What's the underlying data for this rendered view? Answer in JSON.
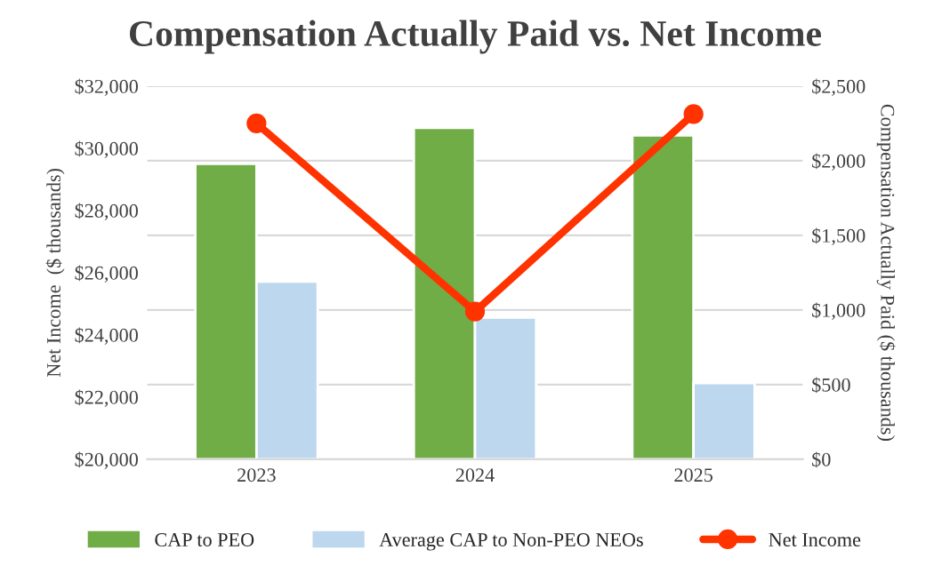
{
  "chart_data": {
    "type": "bar",
    "title": "Compensation Actually Paid vs. Net Income",
    "categories": [
      "2023",
      "2024",
      "2025"
    ],
    "series": [
      {
        "name": "CAP to PEO",
        "color": "#70ad47",
        "values": [
          1980,
          2220,
          2170
        ],
        "axis": "y2"
      },
      {
        "name": "Average CAP to Non-PEO NEOs",
        "color": "#bdd7ee",
        "values": [
          1190,
          950,
          510
        ],
        "axis": "y2"
      },
      {
        "name": "Net Income",
        "type": "line",
        "color": "#ff3300",
        "values": [
          30800,
          24750,
          31100
        ],
        "marker": "circle"
      }
    ],
    "ylabel": "Net Income  ($ thousands)",
    "y2label": "Compensation Actually Paid ($ thousands)",
    "ylim": [
      20000,
      32000
    ],
    "yticks": [
      {
        "value": 20000,
        "label": "$20,000"
      },
      {
        "value": 22000,
        "label": "$22,000"
      },
      {
        "value": 24000,
        "label": "$24,000"
      },
      {
        "value": 26000,
        "label": "$26,000"
      },
      {
        "value": 28000,
        "label": "$28,000"
      },
      {
        "value": 30000,
        "label": "$30,000"
      },
      {
        "value": 32000,
        "label": "$32,000"
      }
    ],
    "y2lim": [
      0,
      2500
    ],
    "y2ticks": [
      {
        "value": 0,
        "label": "$0"
      },
      {
        "value": 500,
        "label": "$500"
      },
      {
        "value": 1000,
        "label": "$1,000"
      },
      {
        "value": 1500,
        "label": "$1,500"
      },
      {
        "value": 2000,
        "label": "$2,000"
      },
      {
        "value": 2500,
        "label": "$2,500"
      }
    ],
    "grid": "y",
    "legend": "bottom"
  }
}
